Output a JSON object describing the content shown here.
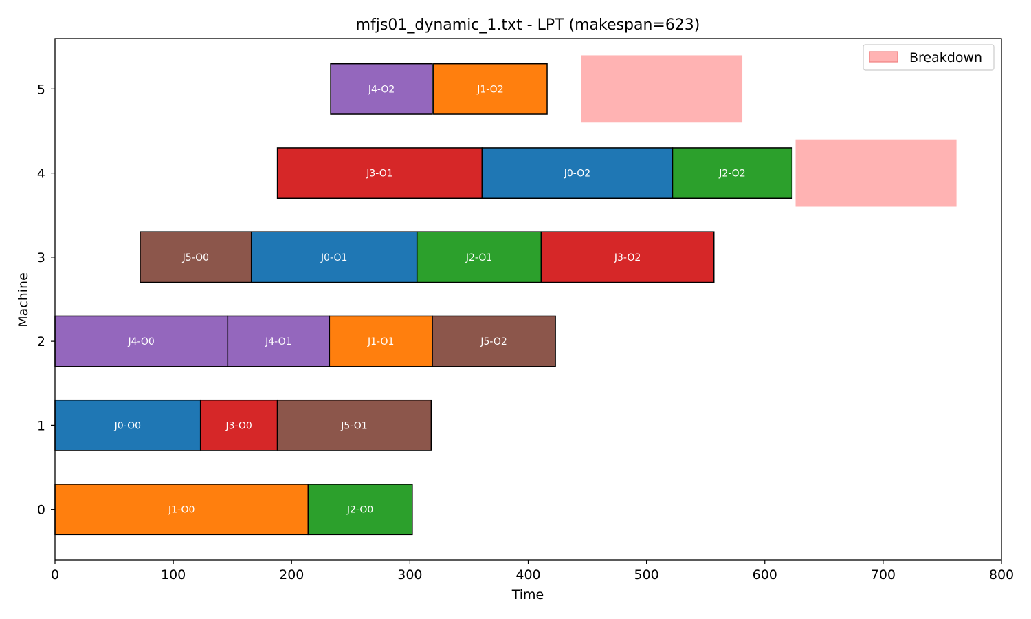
{
  "chart_data": {
    "type": "gantt",
    "title": "mfjs01_dynamic_1.txt - LPT (makespan=623)",
    "xlabel": "Time",
    "ylabel": "Machine",
    "xlim": [
      0,
      800
    ],
    "ylim": [
      -0.6,
      5.6
    ],
    "xticks": [
      0,
      100,
      200,
      300,
      400,
      500,
      600,
      700,
      800
    ],
    "yticks": [
      0,
      1,
      2,
      3,
      4,
      5
    ],
    "grid": false,
    "legend": {
      "placement": "top-right",
      "entries": [
        {
          "label": "Breakdown",
          "color": "#ffb3b3"
        }
      ]
    },
    "job_colors": {
      "J0": "#1f77b4",
      "J1": "#ff7f0e",
      "J2": "#2ca02c",
      "J3": "#d62728",
      "J4": "#9467bd",
      "J5": "#8c564b"
    },
    "operations": [
      {
        "machine": 0,
        "job": "J1",
        "label": "J1-O0",
        "start": 0,
        "end": 214
      },
      {
        "machine": 0,
        "job": "J2",
        "label": "J2-O0",
        "start": 214,
        "end": 302
      },
      {
        "machine": 1,
        "job": "J0",
        "label": "J0-O0",
        "start": 0,
        "end": 123
      },
      {
        "machine": 1,
        "job": "J3",
        "label": "J3-O0",
        "start": 123,
        "end": 188
      },
      {
        "machine": 1,
        "job": "J5",
        "label": "J5-O1",
        "start": 188,
        "end": 318
      },
      {
        "machine": 2,
        "job": "J4",
        "label": "J4-O0",
        "start": 0,
        "end": 146
      },
      {
        "machine": 2,
        "job": "J4",
        "label": "J4-O1",
        "start": 146,
        "end": 232
      },
      {
        "machine": 2,
        "job": "J1",
        "label": "J1-O1",
        "start": 232,
        "end": 319
      },
      {
        "machine": 2,
        "job": "J5",
        "label": "J5-O2",
        "start": 319,
        "end": 423
      },
      {
        "machine": 3,
        "job": "J5",
        "label": "J5-O0",
        "start": 72,
        "end": 166
      },
      {
        "machine": 3,
        "job": "J0",
        "label": "J0-O1",
        "start": 166,
        "end": 306
      },
      {
        "machine": 3,
        "job": "J2",
        "label": "J2-O1",
        "start": 306,
        "end": 411
      },
      {
        "machine": 3,
        "job": "J3",
        "label": "J3-O2",
        "start": 411,
        "end": 557
      },
      {
        "machine": 4,
        "job": "J3",
        "label": "J3-O1",
        "start": 188,
        "end": 361
      },
      {
        "machine": 4,
        "job": "J0",
        "label": "J0-O2",
        "start": 361,
        "end": 522
      },
      {
        "machine": 4,
        "job": "J2",
        "label": "J2-O2",
        "start": 522,
        "end": 623
      },
      {
        "machine": 5,
        "job": "J4",
        "label": "J4-O2",
        "start": 233,
        "end": 319
      },
      {
        "machine": 5,
        "job": "J1",
        "label": "J1-O2",
        "start": 320,
        "end": 416
      }
    ],
    "breakdowns": [
      {
        "machine": 5,
        "start": 445,
        "end": 581
      },
      {
        "machine": 4,
        "start": 626,
        "end": 762
      }
    ]
  }
}
